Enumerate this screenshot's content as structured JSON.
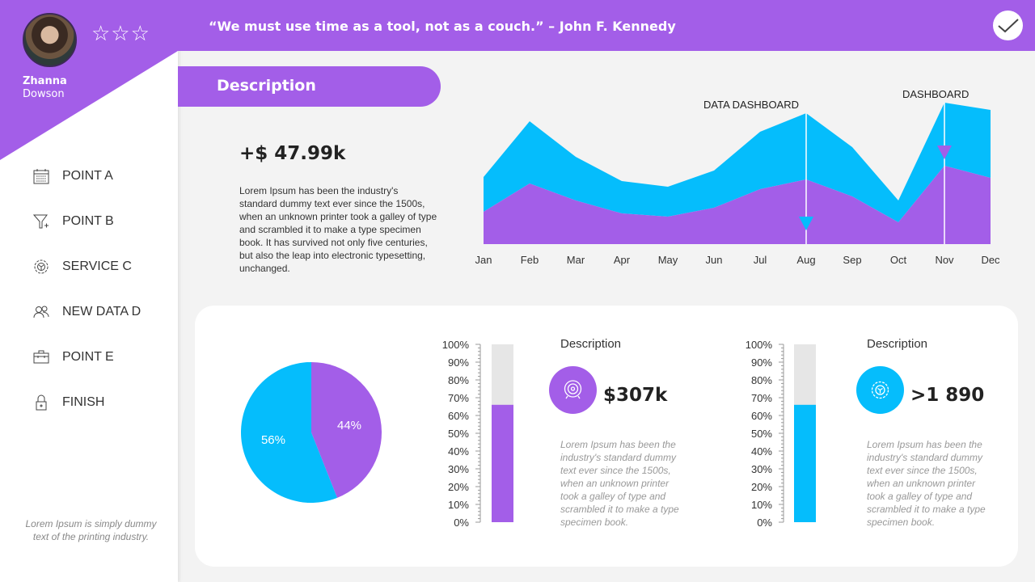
{
  "user": {
    "first_name": "Zhanna",
    "last_name": "Dowson",
    "rating_stars": "☆☆☆"
  },
  "header": {
    "quote": "“We must use time as a tool, not as a couch.” – John F. Kennedy",
    "check_icon": "checkmark-icon"
  },
  "sidebar": {
    "items": [
      {
        "label": "POINT A",
        "icon": "calendar-icon"
      },
      {
        "label": "POINT B",
        "icon": "funnel-icon"
      },
      {
        "label": "SERVICE C",
        "icon": "gear-icon"
      },
      {
        "label": "NEW DATA D",
        "icon": "users-icon"
      },
      {
        "label": "POINT E",
        "icon": "toolbox-icon"
      },
      {
        "label": "FINISH",
        "icon": "lock-icon"
      }
    ],
    "footer": "Lorem Ipsum is simply dummy text of the printing industry."
  },
  "section": {
    "title": "Description",
    "value": "+$ 47.99k",
    "text": "Lorem Ipsum has been the industry's standard dummy text ever since the 1500s, when an unknown printer took a galley of type and scrambled it to make a type specimen book. It has survived not only five centuries, but also the leap into electronic typesetting, unchanged."
  },
  "colors": {
    "purple": "#a35ee8",
    "blue": "#05bdfc",
    "track": "#e6e6e6"
  },
  "chart_data": [
    {
      "type": "area",
      "stacked": true,
      "categories": [
        "Jan",
        "Feb",
        "Mar",
        "Apr",
        "May",
        "Jun",
        "Jul",
        "Aug",
        "Sep",
        "Oct",
        "Nov",
        "Dec"
      ],
      "series": [
        {
          "values": [
            40,
            75,
            54,
            38,
            34,
            45,
            68,
            80,
            59,
            27,
            97,
            82
          ],
          "color": "#a35ee8"
        },
        {
          "values": [
            43,
            77,
            54,
            40,
            37,
            46,
            71,
            82,
            61,
            27,
            78,
            84
          ],
          "color": "#05bdfc"
        }
      ],
      "ylim": [
        0,
        180
      ],
      "annotations": [
        {
          "text": "DATA DASHBOARD",
          "category": "Aug"
        },
        {
          "text": "DASHBOARD",
          "category": "Nov"
        }
      ]
    },
    {
      "type": "pie",
      "values": [
        44,
        56
      ],
      "labels": [
        "44%",
        "56%"
      ],
      "colors": [
        "#a35ee8",
        "#05bdfc"
      ]
    },
    {
      "type": "bar",
      "ticks": [
        "100%",
        "90%",
        "80%",
        "70%",
        "60%",
        "50%",
        "40%",
        "30%",
        "20%",
        "10%",
        "0%"
      ],
      "value": 66,
      "ylim": [
        0,
        100
      ],
      "color": "#a35ee8"
    },
    {
      "type": "bar",
      "ticks": [
        "100%",
        "90%",
        "80%",
        "70%",
        "60%",
        "50%",
        "40%",
        "30%",
        "20%",
        "10%",
        "0%"
      ],
      "value": 66,
      "ylim": [
        0,
        100
      ],
      "color": "#05bdfc"
    }
  ],
  "kpis": [
    {
      "title": "Description",
      "value": "$307k",
      "icon": "target-icon",
      "text": "Lorem Ipsum has been the industry's standard dummy text ever since the 1500s, when an unknown printer took a galley of type and scrambled it to make a type specimen book."
    },
    {
      "title": "Description",
      "value": ">1 890",
      "icon": "steering-icon",
      "text": "Lorem Ipsum has been the industry's standard dummy text ever since the 1500s, when an unknown printer took a galley of type and scrambled it to make a type specimen book."
    }
  ]
}
